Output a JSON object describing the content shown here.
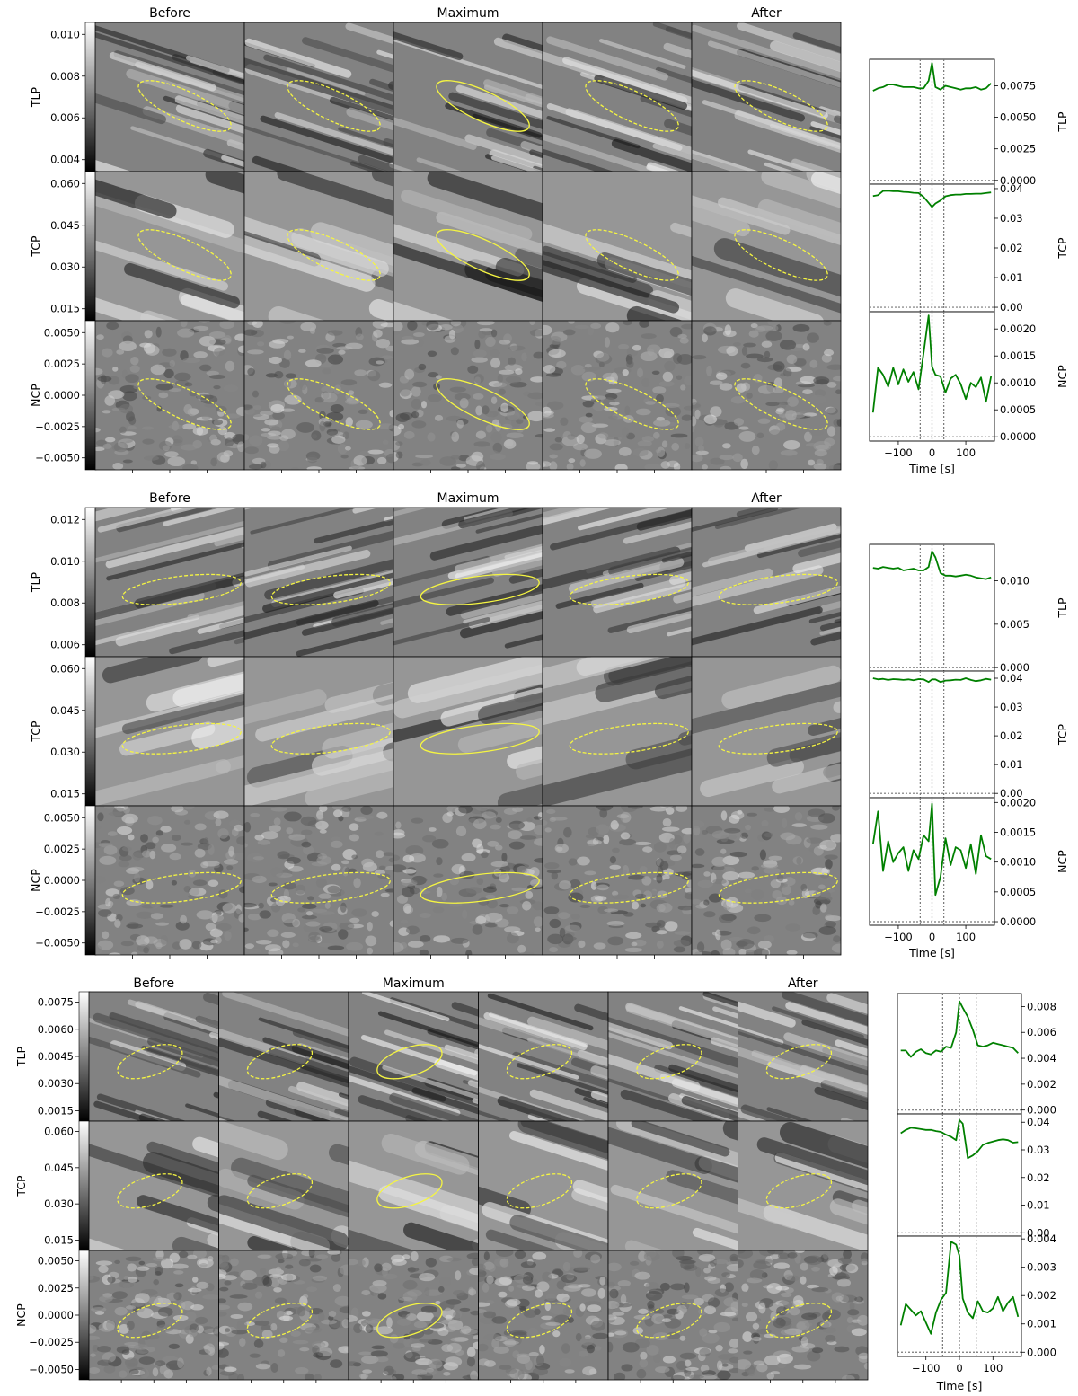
{
  "blocks": [
    {
      "headers": [
        "Before",
        "Maximum",
        "After"
      ],
      "rows": [
        {
          "label": "TLP",
          "ticks": [
            "0.010",
            "0.008",
            "0.006",
            "0.004"
          ]
        },
        {
          "label": "TCP",
          "ticks": [
            "0.060",
            "0.045",
            "0.030",
            "0.015"
          ]
        },
        {
          "label": "NCP",
          "ticks": [
            "0.0050",
            "0.0025",
            "0.0000",
            "−0.0025",
            "−0.0050"
          ]
        }
      ]
    },
    {
      "headers": [
        "Before",
        "Maximum",
        "After"
      ],
      "rows": [
        {
          "label": "TLP",
          "ticks": [
            "0.012",
            "0.010",
            "0.008",
            "0.006"
          ]
        },
        {
          "label": "TCP",
          "ticks": [
            "0.060",
            "0.045",
            "0.030",
            "0.015"
          ]
        },
        {
          "label": "NCP",
          "ticks": [
            "0.0050",
            "0.0025",
            "0.0000",
            "−0.0025",
            "−0.0050"
          ]
        }
      ]
    },
    {
      "headers": [
        "Before",
        "Maximum",
        "After"
      ],
      "rows": [
        {
          "label": "TLP",
          "ticks": [
            "0.0075",
            "0.0060",
            "0.0045",
            "0.0030",
            "0.0015"
          ]
        },
        {
          "label": "TCP",
          "ticks": [
            "0.060",
            "0.045",
            "0.030",
            "0.015"
          ]
        },
        {
          "label": "NCP",
          "ticks": [
            "0.0050",
            "0.0025",
            "0.0000",
            "−0.0025",
            "−0.0050"
          ]
        }
      ]
    }
  ],
  "chart_data": [
    {
      "type": "line",
      "xlabel": "Time [s]",
      "xlim": [
        -185,
        185
      ],
      "xticks": [
        -100,
        0,
        100
      ],
      "xtick_labels": [
        "−100",
        "0",
        "100"
      ],
      "vlines": [
        -35,
        0,
        35
      ],
      "line_color": "#008000",
      "panels": [
        {
          "ylabel": "TLP",
          "ylim": [
            -0.0003,
            0.0096
          ],
          "yticks": [
            "0.0000",
            "0.0025",
            "0.0050",
            "0.0075"
          ],
          "ytick_values": [
            0,
            0.0025,
            0.005,
            0.0075
          ],
          "x": [
            -175,
            -160,
            -145,
            -130,
            -115,
            -100,
            -85,
            -70,
            -55,
            -40,
            -25,
            -10,
            0,
            10,
            25,
            40,
            55,
            70,
            85,
            100,
            115,
            130,
            145,
            160,
            175
          ],
          "y": [
            0.0071,
            0.0073,
            0.0074,
            0.0076,
            0.0076,
            0.0075,
            0.0074,
            0.0074,
            0.0074,
            0.0073,
            0.0073,
            0.0079,
            0.0093,
            0.0074,
            0.0072,
            0.0075,
            0.0074,
            0.0073,
            0.0072,
            0.0073,
            0.0073,
            0.0074,
            0.0072,
            0.0073,
            0.0077
          ]
        },
        {
          "ylabel": "TCP",
          "ylim": [
            -0.0015,
            0.0415
          ],
          "yticks": [
            "0.00",
            "0.01",
            "0.02",
            "0.03",
            "0.04"
          ],
          "ytick_values": [
            0,
            0.01,
            0.02,
            0.03,
            0.04
          ],
          "x": [
            -175,
            -160,
            -145,
            -130,
            -115,
            -100,
            -85,
            -70,
            -55,
            -40,
            -25,
            -10,
            0,
            10,
            25,
            40,
            55,
            70,
            85,
            100,
            115,
            130,
            145,
            160,
            175
          ],
          "y": [
            0.0375,
            0.0378,
            0.0392,
            0.0393,
            0.0391,
            0.0391,
            0.0389,
            0.0388,
            0.0386,
            0.0385,
            0.0372,
            0.0352,
            0.0338,
            0.035,
            0.036,
            0.0374,
            0.0378,
            0.038,
            0.038,
            0.0382,
            0.0382,
            0.0383,
            0.0383,
            0.0385,
            0.0387
          ]
        },
        {
          "ylabel": "NCP",
          "ylim": [
            -8e-05,
            0.00232
          ],
          "yticks": [
            "0.0000",
            "0.0005",
            "0.0010",
            "0.0015",
            "0.0020"
          ],
          "ytick_values": [
            0,
            0.0005,
            0.001,
            0.0015,
            0.002
          ],
          "x": [
            -175,
            -160,
            -145,
            -130,
            -115,
            -100,
            -85,
            -70,
            -55,
            -40,
            -25,
            -10,
            0,
            10,
            25,
            40,
            55,
            70,
            85,
            100,
            115,
            130,
            145,
            160,
            175
          ],
          "y": [
            0.00045,
            0.00128,
            0.00115,
            0.00093,
            0.00128,
            0.00097,
            0.00125,
            0.00102,
            0.0012,
            0.00088,
            0.00155,
            0.00225,
            0.0013,
            0.00115,
            0.00112,
            0.00082,
            0.00108,
            0.00115,
            0.00098,
            0.0007,
            0.001,
            0.00092,
            0.0011,
            0.00065,
            0.00112
          ]
        }
      ]
    },
    {
      "type": "line",
      "xlabel": "Time [s]",
      "xlim": [
        -185,
        185
      ],
      "xticks": [
        -100,
        0,
        100
      ],
      "xtick_labels": [
        "−100",
        "0",
        "100"
      ],
      "vlines": [
        -35,
        0,
        35
      ],
      "line_color": "#008000",
      "panels": [
        {
          "ylabel": "TLP",
          "ylim": [
            -0.0004,
            0.0142
          ],
          "yticks": [
            "0.000",
            "0.005",
            "0.010"
          ],
          "ytick_values": [
            0,
            0.005,
            0.01
          ],
          "x": [
            -175,
            -160,
            -145,
            -130,
            -115,
            -100,
            -85,
            -70,
            -55,
            -40,
            -25,
            -10,
            0,
            10,
            25,
            40,
            55,
            70,
            85,
            100,
            115,
            130,
            145,
            160,
            175
          ],
          "y": [
            0.0115,
            0.0114,
            0.0116,
            0.0115,
            0.0114,
            0.0115,
            0.0112,
            0.0113,
            0.0114,
            0.0112,
            0.0112,
            0.0116,
            0.0134,
            0.0127,
            0.0109,
            0.0106,
            0.0106,
            0.0105,
            0.0106,
            0.0107,
            0.0106,
            0.0104,
            0.0103,
            0.0102,
            0.0104
          ]
        },
        {
          "ylabel": "TCP",
          "ylim": [
            -0.0015,
            0.0425
          ],
          "yticks": [
            "0.00",
            "0.01",
            "0.02",
            "0.03",
            "0.04"
          ],
          "ytick_values": [
            0,
            0.01,
            0.02,
            0.03,
            0.04
          ],
          "x": [
            -175,
            -160,
            -145,
            -130,
            -115,
            -100,
            -85,
            -70,
            -55,
            -40,
            -25,
            -10,
            0,
            10,
            25,
            40,
            55,
            70,
            85,
            100,
            115,
            130,
            145,
            160,
            175
          ],
          "y": [
            0.04,
            0.0396,
            0.0398,
            0.0394,
            0.0397,
            0.0396,
            0.0394,
            0.0396,
            0.0393,
            0.0397,
            0.0396,
            0.0387,
            0.0396,
            0.0396,
            0.0387,
            0.0392,
            0.0393,
            0.0395,
            0.0394,
            0.04,
            0.0394,
            0.039,
            0.0393,
            0.0398,
            0.0395
          ]
        },
        {
          "ylabel": "NCP",
          "ylim": [
            -6e-05,
            0.00208
          ],
          "yticks": [
            "0.0000",
            "0.0005",
            "0.0010",
            "0.0015",
            "0.0020"
          ],
          "ytick_values": [
            0,
            0.0005,
            0.001,
            0.0015,
            0.002
          ],
          "x": [
            -175,
            -160,
            -145,
            -130,
            -115,
            -100,
            -85,
            -70,
            -55,
            -40,
            -25,
            -10,
            0,
            10,
            25,
            40,
            55,
            70,
            85,
            100,
            115,
            130,
            145,
            160,
            175
          ],
          "y": [
            0.0013,
            0.00185,
            0.00085,
            0.00135,
            0.001,
            0.00115,
            0.00125,
            0.00085,
            0.0012,
            0.00105,
            0.00145,
            0.00135,
            0.00198,
            0.00045,
            0.00075,
            0.0014,
            0.00095,
            0.00125,
            0.0012,
            0.0009,
            0.0013,
            0.0008,
            0.00145,
            0.0011,
            0.00105
          ]
        }
      ]
    },
    {
      "type": "line",
      "xlabel": "Time [s]",
      "xlim": [
        -185,
        185
      ],
      "xticks": [
        -100,
        0,
        100
      ],
      "xtick_labels": [
        "−100",
        "0",
        "100"
      ],
      "vlines": [
        -50,
        0,
        50
      ],
      "line_color": "#008000",
      "panels": [
        {
          "ylabel": "TLP",
          "ylim": [
            -0.0003,
            0.009
          ],
          "yticks": [
            "0.000",
            "0.002",
            "0.004",
            "0.006",
            "0.008"
          ],
          "ytick_values": [
            0,
            0.002,
            0.004,
            0.006,
            0.008
          ],
          "x": [
            -175,
            -160,
            -145,
            -130,
            -115,
            -100,
            -85,
            -70,
            -55,
            -40,
            -25,
            -10,
            0,
            10,
            25,
            40,
            55,
            70,
            85,
            100,
            115,
            130,
            145,
            160,
            175
          ],
          "y": [
            0.0046,
            0.0046,
            0.0041,
            0.0045,
            0.0047,
            0.0044,
            0.0043,
            0.0046,
            0.0045,
            0.0049,
            0.0048,
            0.006,
            0.0084,
            0.0079,
            0.0072,
            0.0062,
            0.005,
            0.0049,
            0.005,
            0.0052,
            0.0051,
            0.005,
            0.0049,
            0.0048,
            0.0044
          ]
        },
        {
          "ylabel": "TCP",
          "ylim": [
            -0.0012,
            0.043
          ],
          "yticks": [
            "0.00",
            "0.01",
            "0.02",
            "0.03",
            "0.04"
          ],
          "ytick_values": [
            0,
            0.01,
            0.02,
            0.03,
            0.04
          ],
          "x": [
            -175,
            -160,
            -145,
            -130,
            -115,
            -100,
            -85,
            -70,
            -55,
            -40,
            -25,
            -10,
            0,
            10,
            25,
            40,
            55,
            70,
            85,
            100,
            115,
            130,
            145,
            160,
            175
          ],
          "y": [
            0.036,
            0.0372,
            0.038,
            0.0378,
            0.0375,
            0.0372,
            0.0372,
            0.0368,
            0.0365,
            0.0355,
            0.0347,
            0.0335,
            0.0408,
            0.0395,
            0.027,
            0.028,
            0.0295,
            0.0318,
            0.0325,
            0.033,
            0.0335,
            0.0338,
            0.0335,
            0.0326,
            0.0328
          ]
        },
        {
          "ylabel": "NCP",
          "ylim": [
            -0.00015,
            0.0041
          ],
          "yticks": [
            "0.000",
            "0.001",
            "0.002",
            "0.003",
            "0.004"
          ],
          "ytick_values": [
            0,
            0.001,
            0.002,
            0.003,
            0.004
          ],
          "x": [
            -175,
            -160,
            -145,
            -130,
            -115,
            -100,
            -85,
            -70,
            -55,
            -40,
            -25,
            -10,
            0,
            10,
            25,
            40,
            55,
            70,
            85,
            100,
            115,
            130,
            145,
            160,
            175
          ],
          "y": [
            0.00095,
            0.0017,
            0.0015,
            0.0013,
            0.00145,
            0.00105,
            0.00065,
            0.0014,
            0.00185,
            0.0021,
            0.0039,
            0.0038,
            0.0034,
            0.0019,
            0.0014,
            0.0012,
            0.0018,
            0.00145,
            0.0014,
            0.00155,
            0.00195,
            0.00145,
            0.00175,
            0.00195,
            0.00125
          ]
        }
      ]
    }
  ]
}
